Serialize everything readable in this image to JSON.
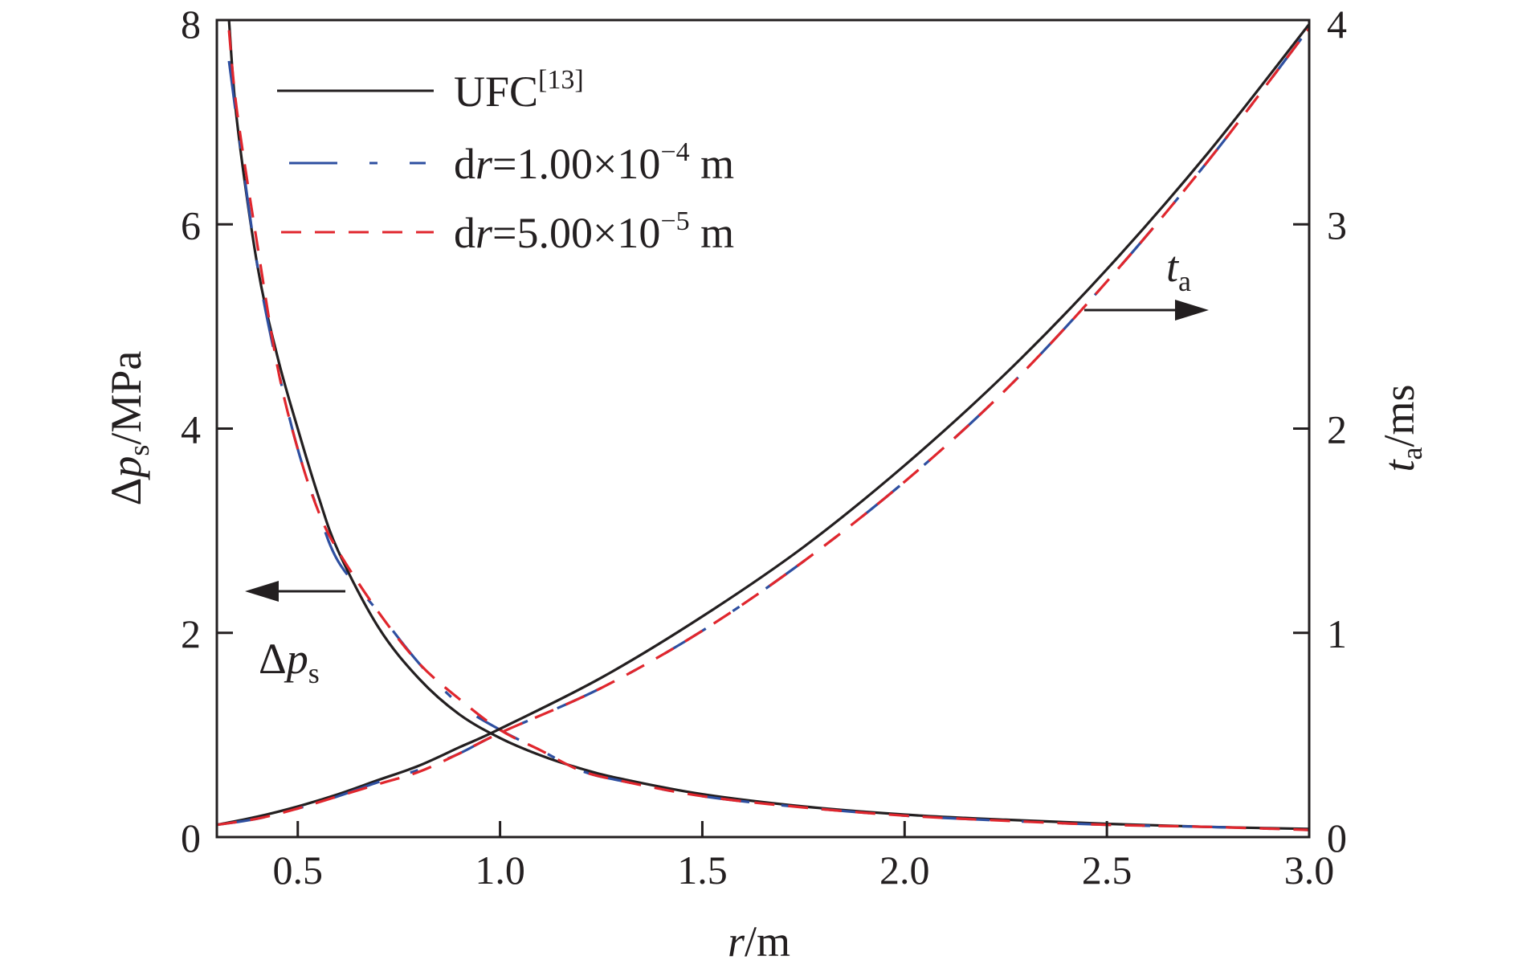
{
  "chart_data": {
    "type": "line",
    "x_axis": {
      "label_var": "r",
      "label_unit": "/m",
      "range": [
        0.3,
        3.0
      ],
      "ticks": [
        0.5,
        1.0,
        1.5,
        2.0,
        2.5,
        3.0
      ],
      "tick_labels": [
        "0.5",
        "1.0",
        "1.5",
        "2.0",
        "2.5",
        "3.0"
      ]
    },
    "y_left": {
      "label_prefix": "Δ",
      "label_var": "p",
      "label_sub": "s",
      "label_unit": "/MPa",
      "range": [
        0,
        8
      ],
      "ticks": [
        0,
        2,
        4,
        6,
        8
      ],
      "tick_labels": [
        "0",
        "2",
        "4",
        "6",
        "8"
      ]
    },
    "y_right": {
      "label_var": "t",
      "label_sub": "a",
      "label_unit": "/ms",
      "range": [
        0,
        4
      ],
      "ticks": [
        0,
        1,
        2,
        3,
        4
      ],
      "tick_labels": [
        "0",
        "1",
        "2",
        "3",
        "4"
      ]
    },
    "legend": {
      "placement": "top-left",
      "entries": [
        {
          "text": "UFC",
          "sup": "[13]",
          "color": "#231f20",
          "dash": "solid"
        },
        {
          "pre": "d",
          "var": "r",
          "text": "=1.00×10",
          "sup": "−4",
          "post": " m",
          "color": "#2e4fa0",
          "dash": "long-short"
        },
        {
          "pre": "d",
          "var": "r",
          "text": "=5.00×10",
          "sup": "−5",
          "post": " m",
          "color": "#e0262d",
          "dash": "dashed"
        }
      ]
    },
    "annotations": [
      {
        "prefix": "Δ",
        "var": "p",
        "sub": "s",
        "arrow": "left",
        "axis": "left"
      },
      {
        "prefix": "",
        "var": "t",
        "sub": "a",
        "arrow": "right",
        "axis": "right"
      }
    ],
    "series": [
      {
        "name": "UFC[13]",
        "axis": "left",
        "color": "#231f20",
        "dash": "solid",
        "points": [
          [
            0.33,
            8.0
          ],
          [
            0.35,
            7.0
          ],
          [
            0.4,
            5.6
          ],
          [
            0.45,
            4.7
          ],
          [
            0.5,
            4.0
          ],
          [
            0.55,
            3.35
          ],
          [
            0.6,
            2.8
          ],
          [
            0.7,
            2.05
          ],
          [
            0.8,
            1.55
          ],
          [
            0.9,
            1.2
          ],
          [
            1.0,
            0.97
          ],
          [
            1.1,
            0.8
          ],
          [
            1.2,
            0.67
          ],
          [
            1.3,
            0.57
          ],
          [
            1.5,
            0.42
          ],
          [
            1.75,
            0.3
          ],
          [
            2.0,
            0.22
          ],
          [
            2.25,
            0.17
          ],
          [
            2.5,
            0.13
          ],
          [
            2.75,
            0.1
          ],
          [
            3.0,
            0.08
          ]
        ]
      },
      {
        "name": "dr=1.00×10−4 m",
        "axis": "left",
        "color": "#2e4fa0",
        "dash": "long-short",
        "points": [
          [
            0.33,
            7.6
          ],
          [
            0.35,
            7.0
          ],
          [
            0.4,
            5.6
          ],
          [
            0.45,
            4.6
          ],
          [
            0.5,
            3.8
          ],
          [
            0.55,
            3.2
          ],
          [
            0.6,
            2.7
          ],
          [
            0.7,
            2.2
          ],
          [
            0.8,
            1.7
          ],
          [
            0.9,
            1.3
          ],
          [
            1.0,
            1.05
          ],
          [
            1.1,
            0.85
          ],
          [
            1.2,
            0.65
          ],
          [
            1.3,
            0.55
          ],
          [
            1.5,
            0.4
          ],
          [
            1.75,
            0.29
          ],
          [
            2.0,
            0.21
          ],
          [
            2.25,
            0.16
          ],
          [
            2.5,
            0.12
          ],
          [
            2.75,
            0.1
          ],
          [
            3.0,
            0.07
          ]
        ]
      },
      {
        "name": "dr=5.00×10−5 m",
        "axis": "left",
        "color": "#e0262d",
        "dash": "dashed",
        "points": [
          [
            0.33,
            7.9
          ],
          [
            0.35,
            7.1
          ],
          [
            0.4,
            5.8
          ],
          [
            0.45,
            4.6
          ],
          [
            0.5,
            3.8
          ],
          [
            0.55,
            3.2
          ],
          [
            0.6,
            2.8
          ],
          [
            0.7,
            2.2
          ],
          [
            0.8,
            1.7
          ],
          [
            0.9,
            1.35
          ],
          [
            1.0,
            1.05
          ],
          [
            1.1,
            0.85
          ],
          [
            1.2,
            0.65
          ],
          [
            1.3,
            0.55
          ],
          [
            1.5,
            0.4
          ],
          [
            1.75,
            0.29
          ],
          [
            2.0,
            0.21
          ],
          [
            2.25,
            0.16
          ],
          [
            2.5,
            0.12
          ],
          [
            2.75,
            0.1
          ],
          [
            3.0,
            0.07
          ]
        ]
      },
      {
        "name": "UFC[13]",
        "axis": "right",
        "color": "#231f20",
        "dash": "solid",
        "points": [
          [
            0.3,
            0.06
          ],
          [
            0.4,
            0.1
          ],
          [
            0.5,
            0.15
          ],
          [
            0.6,
            0.21
          ],
          [
            0.7,
            0.28
          ],
          [
            0.8,
            0.35
          ],
          [
            0.9,
            0.44
          ],
          [
            1.0,
            0.53
          ],
          [
            1.25,
            0.78
          ],
          [
            1.5,
            1.08
          ],
          [
            1.75,
            1.42
          ],
          [
            2.0,
            1.82
          ],
          [
            2.25,
            2.27
          ],
          [
            2.5,
            2.78
          ],
          [
            2.75,
            3.35
          ],
          [
            3.0,
            3.98
          ]
        ]
      },
      {
        "name": "dr=1.00×10−4 m",
        "axis": "right",
        "color": "#2e4fa0",
        "dash": "long-short",
        "points": [
          [
            0.3,
            0.06
          ],
          [
            0.4,
            0.09
          ],
          [
            0.5,
            0.14
          ],
          [
            0.6,
            0.2
          ],
          [
            0.7,
            0.27
          ],
          [
            0.8,
            0.33
          ],
          [
            0.9,
            0.41
          ],
          [
            1.0,
            0.51
          ],
          [
            1.25,
            0.73
          ],
          [
            1.5,
            1.01
          ],
          [
            1.75,
            1.35
          ],
          [
            2.0,
            1.74
          ],
          [
            2.25,
            2.19
          ],
          [
            2.5,
            2.72
          ],
          [
            2.75,
            3.31
          ],
          [
            3.0,
            3.96
          ]
        ]
      },
      {
        "name": "dr=5.00×10−5 m",
        "axis": "right",
        "color": "#e0262d",
        "dash": "dashed",
        "points": [
          [
            0.3,
            0.06
          ],
          [
            0.4,
            0.09
          ],
          [
            0.5,
            0.14
          ],
          [
            0.6,
            0.2
          ],
          [
            0.7,
            0.26
          ],
          [
            0.8,
            0.32
          ],
          [
            0.9,
            0.41
          ],
          [
            1.0,
            0.51
          ],
          [
            1.25,
            0.73
          ],
          [
            1.5,
            1.01
          ],
          [
            1.75,
            1.35
          ],
          [
            2.0,
            1.74
          ],
          [
            2.25,
            2.19
          ],
          [
            2.5,
            2.72
          ],
          [
            2.75,
            3.31
          ],
          [
            3.0,
            3.96
          ]
        ]
      }
    ]
  }
}
